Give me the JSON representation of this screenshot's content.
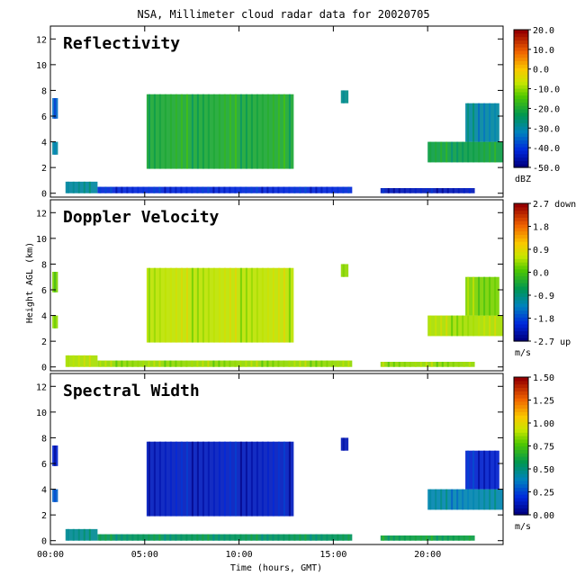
{
  "title": "NSA, Millimeter cloud radar data for 20020705",
  "xlabel": "Time (hours, GMT)",
  "ylabel": "Height AGL (km)",
  "chart_data": [
    {
      "type": "heatmap",
      "panel_label": "Reflectivity",
      "xlim": [
        0,
        24
      ],
      "ylim": [
        -0.3,
        13
      ],
      "x_ticks": [
        0,
        5,
        10,
        15,
        20
      ],
      "x_tick_labels": [
        "00:00",
        "05:00",
        "10:00",
        "15:00",
        "20:00"
      ],
      "y_ticks": [
        0,
        2,
        4,
        6,
        8,
        10,
        12
      ],
      "colorbar": {
        "unit": "dBZ",
        "range": [
          -50,
          20
        ],
        "tick_labels": [
          "20.0",
          "10.0",
          "0.0",
          "-10.0",
          "-20.0",
          "-30.0",
          "-40.0",
          "-50.0"
        ]
      },
      "features": [
        {
          "x": [
            0.1,
            0.4
          ],
          "y": [
            5.8,
            7.4
          ],
          "value": -35
        },
        {
          "x": [
            0.1,
            0.4
          ],
          "y": [
            3.0,
            4.0
          ],
          "value": -30
        },
        {
          "x": [
            0.8,
            2.5
          ],
          "y": [
            0.0,
            0.9
          ],
          "value": -30
        },
        {
          "x": [
            2.5,
            16.0
          ],
          "y": [
            0.0,
            0.5
          ],
          "value": -42
        },
        {
          "x": [
            17.5,
            22.5
          ],
          "y": [
            0.0,
            0.4
          ],
          "value": -45
        },
        {
          "x": [
            5.1,
            12.9
          ],
          "y": [
            1.9,
            7.7
          ],
          "value": -20
        },
        {
          "x": [
            15.4,
            15.8
          ],
          "y": [
            7.0,
            8.0
          ],
          "value": -28
        },
        {
          "x": [
            20.0,
            24.0
          ],
          "y": [
            2.4,
            4.0
          ],
          "value": -22
        },
        {
          "x": [
            22.0,
            23.8
          ],
          "y": [
            4.0,
            7.0
          ],
          "value": -30
        }
      ]
    },
    {
      "type": "heatmap",
      "panel_label": "Doppler Velocity",
      "xlim": [
        0,
        24
      ],
      "ylim": [
        -0.3,
        13
      ],
      "x_ticks": [
        0,
        5,
        10,
        15,
        20
      ],
      "x_tick_labels": [
        "00:00",
        "05:00",
        "10:00",
        "15:00",
        "20:00"
      ],
      "y_ticks": [
        0,
        2,
        4,
        6,
        8,
        10,
        12
      ],
      "colorbar": {
        "unit": "m/s",
        "range": [
          -2.7,
          2.7
        ],
        "tick_labels": [
          "2.7 down",
          "1.8",
          "0.9",
          "0.0",
          "-0.9",
          "-1.8",
          "-2.7 up"
        ]
      },
      "features": [
        {
          "x": [
            0.1,
            0.4
          ],
          "y": [
            5.8,
            7.4
          ],
          "value": 0.3
        },
        {
          "x": [
            0.1,
            0.4
          ],
          "y": [
            3.0,
            4.0
          ],
          "value": 0.4
        },
        {
          "x": [
            0.8,
            2.5
          ],
          "y": [
            0.0,
            0.9
          ],
          "value": 0.5
        },
        {
          "x": [
            2.5,
            16.0
          ],
          "y": [
            0.0,
            0.5
          ],
          "value": 0.4
        },
        {
          "x": [
            17.5,
            22.5
          ],
          "y": [
            0.0,
            0.4
          ],
          "value": 0.4
        },
        {
          "x": [
            5.1,
            12.9
          ],
          "y": [
            1.9,
            7.7
          ],
          "value": 0.6
        },
        {
          "x": [
            15.4,
            15.8
          ],
          "y": [
            7.0,
            8.0
          ],
          "value": 0.4
        },
        {
          "x": [
            20.0,
            24.0
          ],
          "y": [
            2.4,
            4.0
          ],
          "value": 0.5
        },
        {
          "x": [
            22.0,
            23.8
          ],
          "y": [
            4.0,
            7.0
          ],
          "value": 0.3
        }
      ]
    },
    {
      "type": "heatmap",
      "panel_label": "Spectral Width",
      "xlim": [
        0,
        24
      ],
      "ylim": [
        -0.3,
        13
      ],
      "x_ticks": [
        0,
        5,
        10,
        15,
        20
      ],
      "x_tick_labels": [
        "00:00",
        "05:00",
        "10:00",
        "15:00",
        "20:00"
      ],
      "y_ticks": [
        0,
        2,
        4,
        6,
        8,
        10,
        12
      ],
      "colorbar": {
        "unit": "m/s",
        "range": [
          0,
          1.5
        ],
        "tick_labels": [
          "1.50",
          "1.25",
          "1.00",
          "0.75",
          "0.50",
          "0.25",
          "0.00"
        ]
      },
      "features": [
        {
          "x": [
            0.1,
            0.4
          ],
          "y": [
            5.8,
            7.4
          ],
          "value": 0.15
        },
        {
          "x": [
            0.1,
            0.4
          ],
          "y": [
            3.0,
            4.0
          ],
          "value": 0.3
        },
        {
          "x": [
            0.8,
            2.5
          ],
          "y": [
            0.0,
            0.9
          ],
          "value": 0.45
        },
        {
          "x": [
            2.5,
            16.0
          ],
          "y": [
            0.0,
            0.5
          ],
          "value": 0.55
        },
        {
          "x": [
            17.5,
            22.5
          ],
          "y": [
            0.0,
            0.4
          ],
          "value": 0.6
        },
        {
          "x": [
            5.1,
            12.9
          ],
          "y": [
            1.9,
            7.7
          ],
          "value": 0.12
        },
        {
          "x": [
            15.4,
            15.8
          ],
          "y": [
            7.0,
            8.0
          ],
          "value": 0.1
        },
        {
          "x": [
            20.0,
            24.0
          ],
          "y": [
            2.4,
            4.0
          ],
          "value": 0.4
        },
        {
          "x": [
            22.0,
            23.8
          ],
          "y": [
            4.0,
            7.0
          ],
          "value": 0.15
        }
      ]
    }
  ]
}
